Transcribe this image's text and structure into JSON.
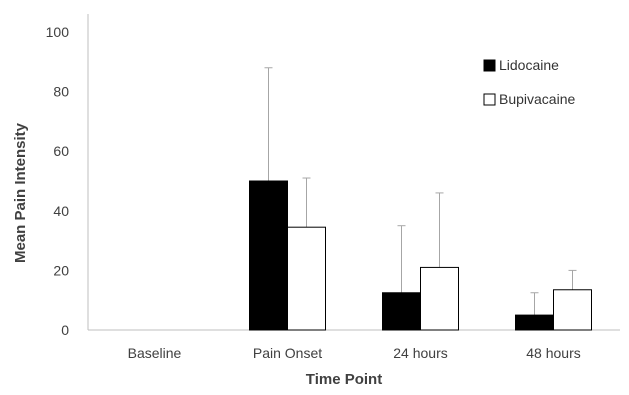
{
  "chart_data": {
    "type": "bar",
    "title": "",
    "xlabel": "Time Point",
    "ylabel": "Mean Pain Intensity",
    "ylim": [
      0,
      100
    ],
    "yticks": [
      0,
      20,
      40,
      60,
      80,
      100
    ],
    "categories": [
      "Baseline",
      "Pain Onset",
      "24 hours",
      "48 hours"
    ],
    "series": [
      {
        "name": "Lidocaine",
        "color": "#000000",
        "values": [
          0,
          50,
          12.5,
          5
        ],
        "error_upper": [
          0,
          38,
          22.5,
          7.5
        ]
      },
      {
        "name": "Bupivacaine",
        "color": "#ffffff",
        "values": [
          0,
          34.5,
          21,
          13.5
        ],
        "error_upper": [
          0,
          16.5,
          25,
          6.5
        ]
      }
    ],
    "grid": false,
    "legend": "top-right"
  }
}
